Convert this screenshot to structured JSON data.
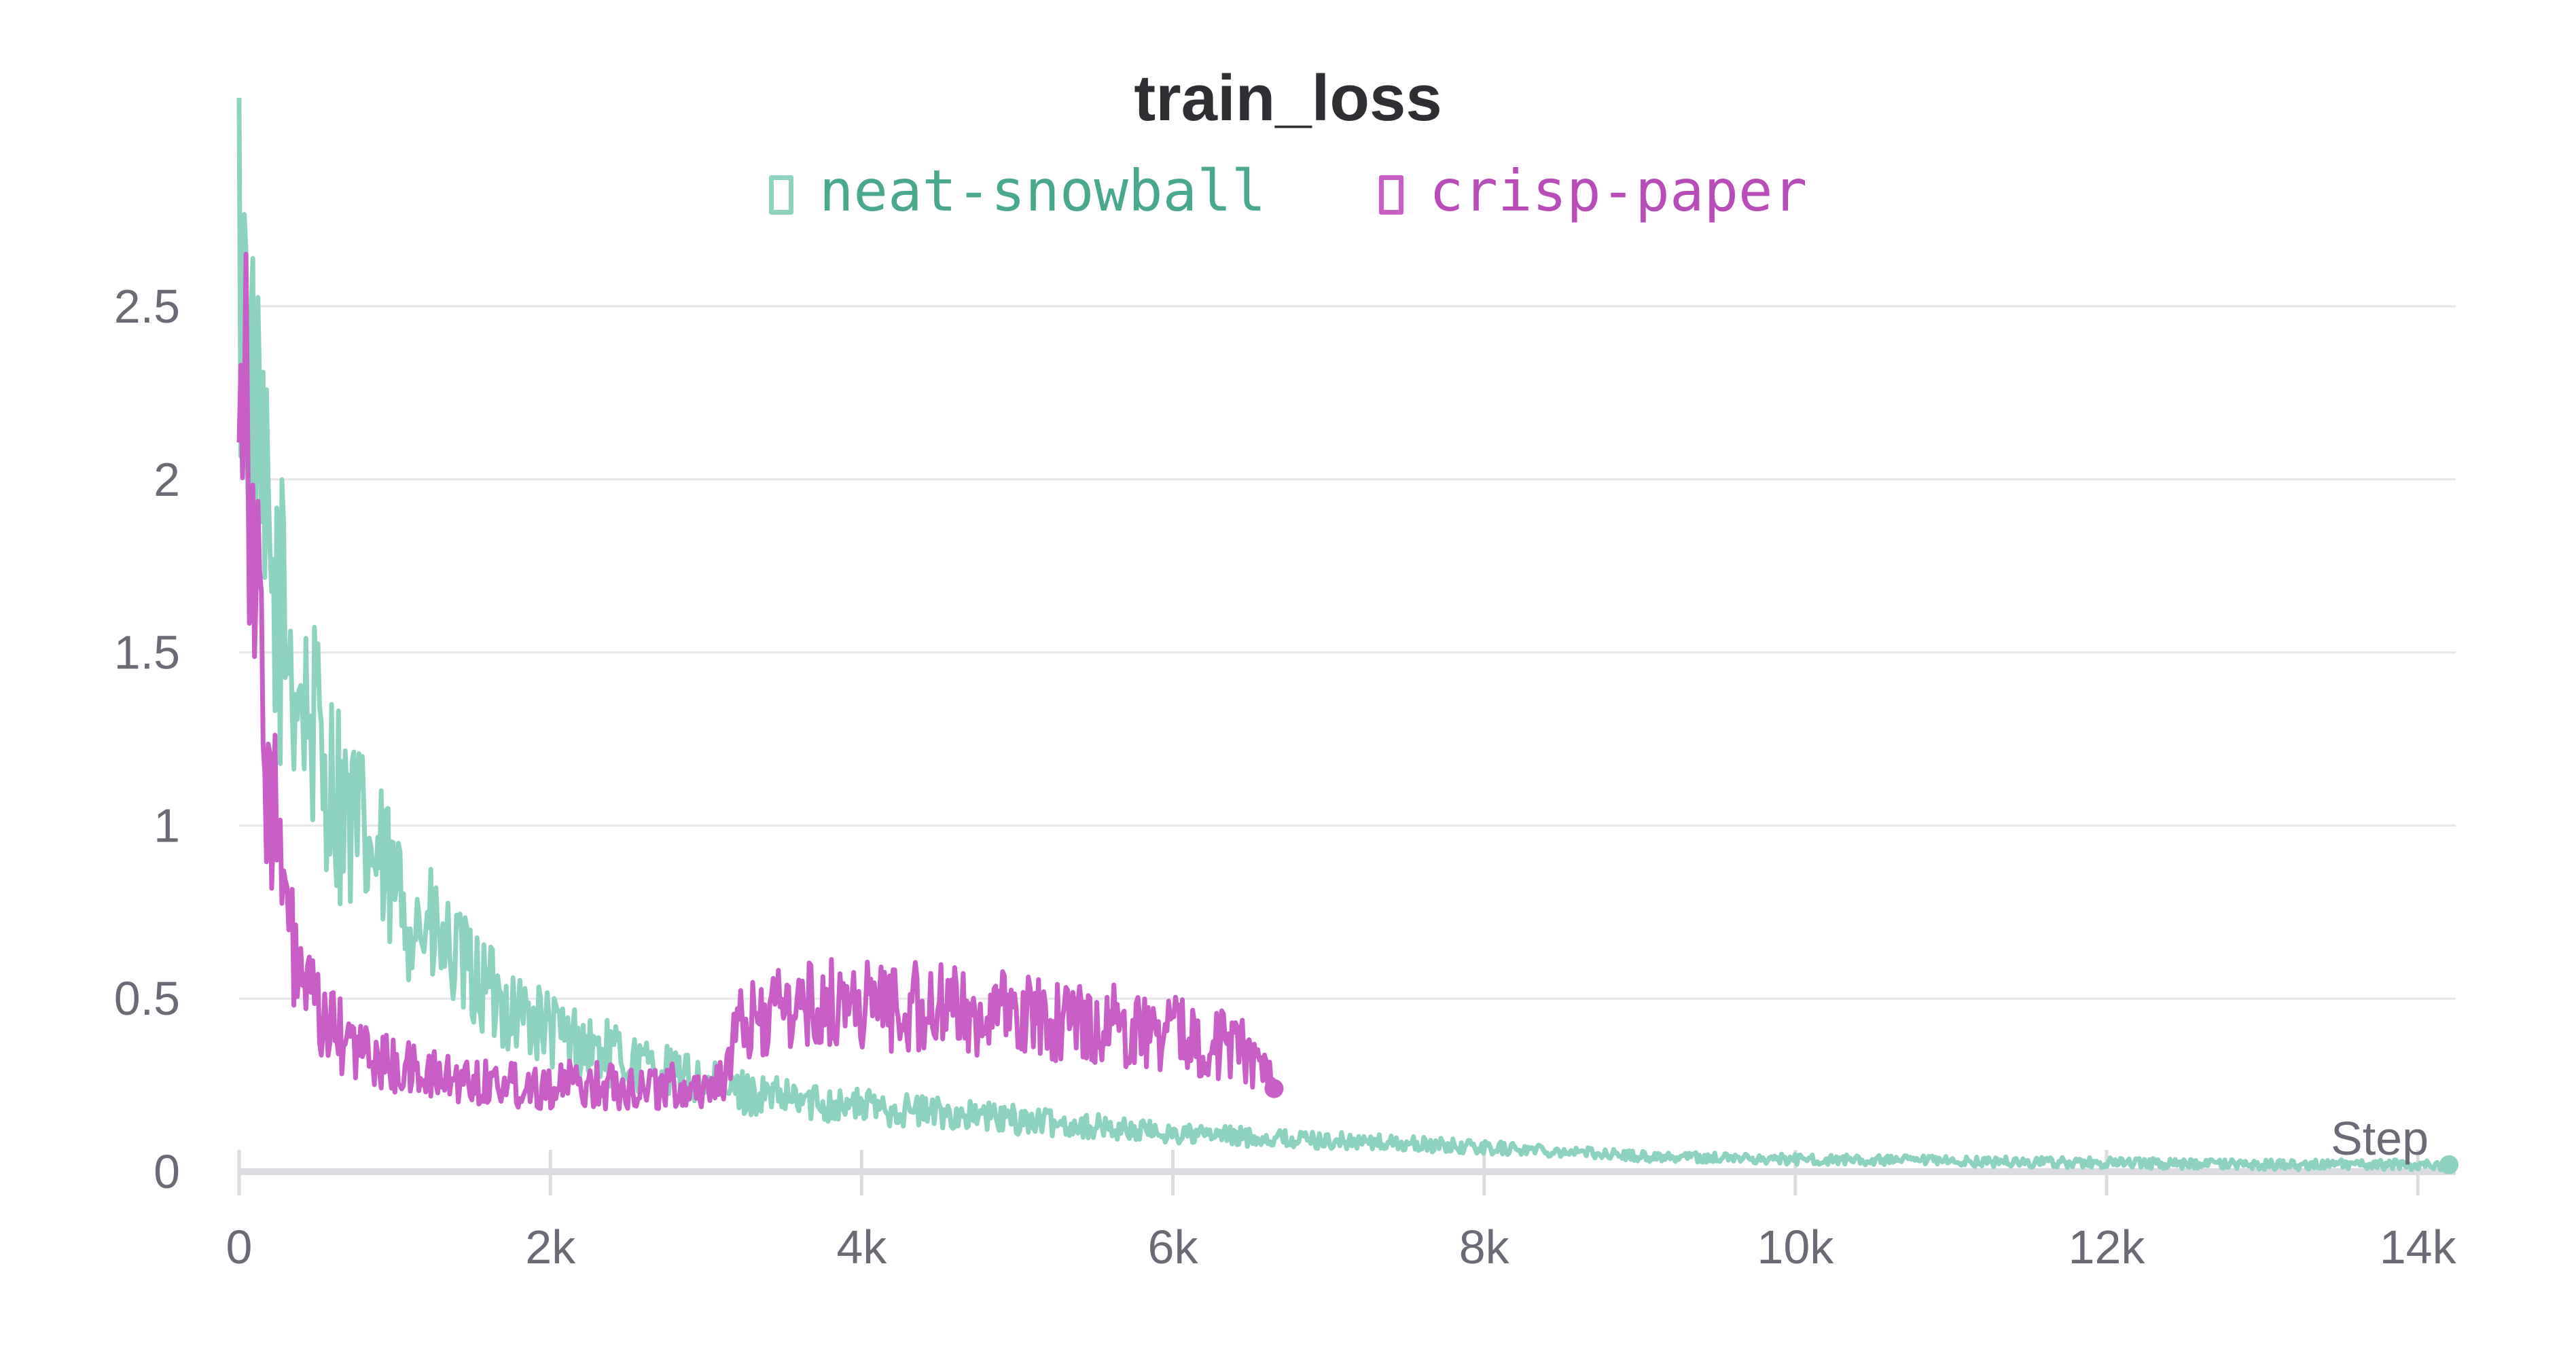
{
  "chart_data": {
    "type": "line",
    "title": "train_loss",
    "xlabel": "Step",
    "ylabel": "",
    "xlim": [
      0,
      14200
    ],
    "ylim": [
      0,
      2.6
    ],
    "x_ticks": [
      0,
      2000,
      4000,
      6000,
      8000,
      10000,
      12000,
      14000
    ],
    "x_tick_labels": [
      "0",
      "2k",
      "4k",
      "6k",
      "8k",
      "10k",
      "12k",
      "14k"
    ],
    "y_ticks": [
      0,
      0.5,
      1,
      1.5,
      2,
      2.5
    ],
    "y_tick_labels": [
      "0",
      "0.5",
      "1",
      "1.5",
      "2",
      "2.5"
    ],
    "grid": true,
    "legend_position": "top-center",
    "series": [
      {
        "name": "neat-snowball",
        "color": "#8ed3c0",
        "text_color": "#4aa88f",
        "end_marker": true,
        "x": [
          0,
          50,
          100,
          200,
          300,
          400,
          500,
          600,
          700,
          800,
          900,
          1000,
          1200,
          1400,
          1600,
          1800,
          2000,
          2200,
          2500,
          2800,
          3100,
          3500,
          4000,
          4500,
          5000,
          5500,
          6000,
          6500,
          7000,
          7500,
          8000,
          8500,
          9000,
          10000,
          11000,
          12000,
          13000,
          14000,
          14200
        ],
        "y": [
          2.6,
          2.45,
          2.05,
          1.7,
          1.55,
          1.38,
          1.25,
          1.12,
          1.02,
          0.95,
          0.88,
          0.81,
          0.7,
          0.6,
          0.52,
          0.46,
          0.41,
          0.37,
          0.32,
          0.28,
          0.24,
          0.21,
          0.19,
          0.17,
          0.15,
          0.13,
          0.11,
          0.1,
          0.09,
          0.08,
          0.07,
          0.06,
          0.045,
          0.035,
          0.03,
          0.025,
          0.02,
          0.02,
          0.02
        ]
      },
      {
        "name": "crisp-paper",
        "color": "#c85ec6",
        "text_color": "#b94db8",
        "end_marker": true,
        "x": [
          0,
          30,
          80,
          120,
          180,
          250,
          300,
          400,
          500,
          700,
          900,
          1100,
          1300,
          1600,
          2000,
          2500,
          3000,
          3150,
          3200,
          3300,
          3500,
          4000,
          4500,
          5000,
          5500,
          6000,
          6300,
          6500,
          6600,
          6650
        ],
        "y": [
          2.6,
          2.45,
          2.05,
          1.55,
          1.2,
          0.95,
          0.72,
          0.55,
          0.45,
          0.37,
          0.32,
          0.29,
          0.27,
          0.26,
          0.25,
          0.25,
          0.24,
          0.3,
          0.4,
          0.44,
          0.47,
          0.49,
          0.47,
          0.45,
          0.43,
          0.4,
          0.37,
          0.34,
          0.3,
          0.24
        ]
      }
    ]
  }
}
